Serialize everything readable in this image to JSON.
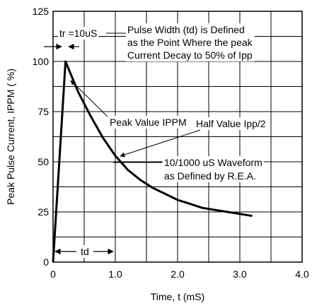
{
  "chart_data": {
    "type": "line",
    "xlabel": "Time, t (mS)",
    "ylabel": "Peak Pulse Current, IPPM ( %)",
    "xlim": [
      0,
      4.0
    ],
    "ylim": [
      0,
      125
    ],
    "x_tick_labels": [
      "0",
      "1.0",
      "2.0",
      "3.0",
      "4.0"
    ],
    "y_tick_labels": [
      "0",
      "25",
      "50",
      "75",
      "100",
      "125"
    ],
    "grid": true,
    "series": [
      {
        "x": [
          0.0,
          0.2,
          0.4,
          0.6,
          0.8,
          1.0,
          1.2,
          1.4,
          1.6,
          1.8,
          2.0,
          2.2,
          2.4,
          2.6,
          2.8,
          3.0,
          3.2
        ],
        "values": [
          0,
          100,
          85,
          73,
          62,
          53,
          46,
          41,
          37,
          34,
          31,
          29,
          27,
          26,
          25,
          24,
          23
        ]
      }
    ],
    "annotations": {
      "tr_label": "tr =10uS",
      "pulse_width_lines": [
        "Pulse Width (td) is Defined",
        "as the Point Where the peak",
        "Current Decay to 50% of Ipp"
      ],
      "peak_value_label": "Peak Value IPPM",
      "half_value_label": "Half Value Ipp/2",
      "waveform_lines": [
        "10/1000 uS Waveform",
        "as Defined by R.E.A."
      ],
      "td_label": "td"
    }
  }
}
